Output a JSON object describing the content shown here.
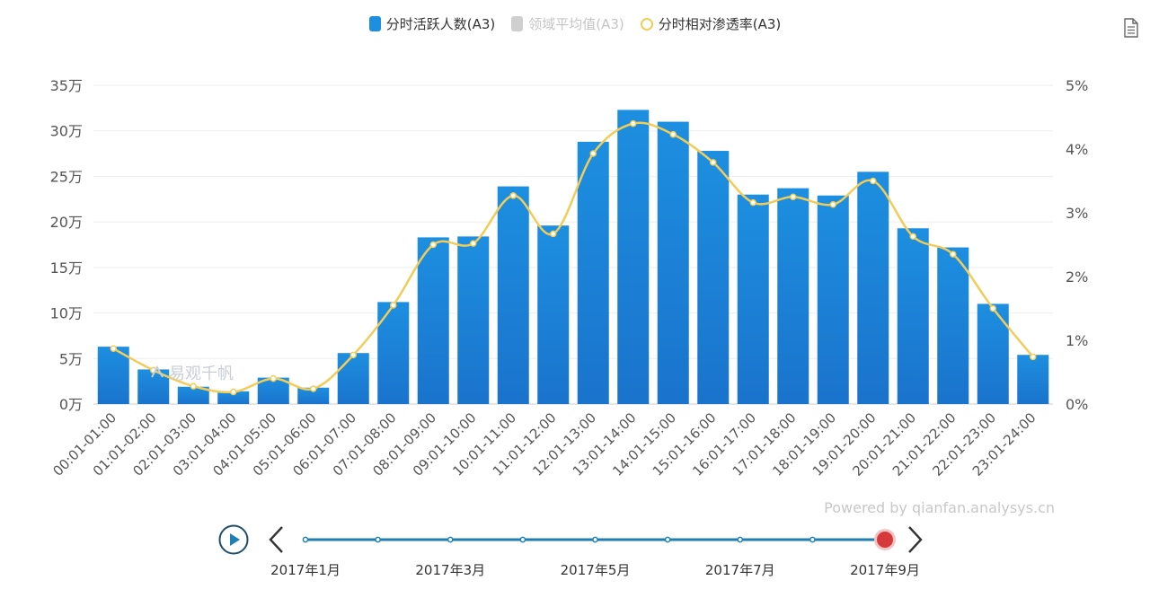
{
  "legend": {
    "bar_series": "分时活跃人数(A3)",
    "avg_series": "领域平均值(A3)",
    "line_series": "分时相对渗透率(A3)"
  },
  "colors": {
    "bar": "#1d8fe0",
    "bar_dark": "#1a73cc",
    "line": "#f2cc58",
    "axis_text": "#555555",
    "grid": "#eeeeee",
    "timeline": "#1f7fb2",
    "timeline_active": "#d6393c"
  },
  "watermark": "易观千帆",
  "powered_by": "Powered by qianfan.analysys.cn",
  "timeline": {
    "labels": [
      "2017年1月",
      "2017年3月",
      "2017年5月",
      "2017年7月",
      "2017年9月"
    ],
    "points": 9,
    "active_index": 8
  },
  "chart_data": {
    "type": "bar",
    "title": "",
    "categories": [
      "00:01-01:00",
      "01:01-02:00",
      "02:01-03:00",
      "03:01-04:00",
      "04:01-05:00",
      "05:01-06:00",
      "06:01-07:00",
      "07:01-08:00",
      "08:01-09:00",
      "09:01-10:00",
      "10:01-11:00",
      "11:01-12:00",
      "12:01-13:00",
      "13:01-14:00",
      "14:01-15:00",
      "15:01-16:00",
      "16:01-17:00",
      "17:01-18:00",
      "18:01-19:00",
      "19:01-20:00",
      "20:01-21:00",
      "21:01-22:00",
      "22:01-23:00",
      "23:01-24:00"
    ],
    "series": [
      {
        "name": "分时活跃人数(A3)",
        "type": "bar",
        "axis": "left",
        "values": [
          63000,
          38000,
          19000,
          14000,
          29000,
          18000,
          56000,
          112000,
          183000,
          184000,
          239000,
          196000,
          288000,
          323000,
          310000,
          278000,
          230000,
          237000,
          229000,
          255000,
          193000,
          172000,
          110000,
          54000
        ]
      },
      {
        "name": "分时相对渗透率(A3)",
        "type": "line",
        "axis": "right",
        "values": [
          0.87,
          0.53,
          0.28,
          0.19,
          0.4,
          0.24,
          0.77,
          1.55,
          2.5,
          2.52,
          3.27,
          2.67,
          3.93,
          4.4,
          4.23,
          3.79,
          3.16,
          3.25,
          3.13,
          3.5,
          2.63,
          2.35,
          1.5,
          0.74
        ]
      }
    ],
    "yleft": {
      "ticks": [
        "0万",
        "5万",
        "10万",
        "15万",
        "20万",
        "25万",
        "30万",
        "35万"
      ],
      "min": 0,
      "max": 350000
    },
    "yright": {
      "ticks": [
        "0%",
        "1%",
        "2%",
        "3%",
        "4%",
        "5%"
      ],
      "min": 0,
      "max": 5
    },
    "grid": true,
    "legend_position": "top-center"
  }
}
